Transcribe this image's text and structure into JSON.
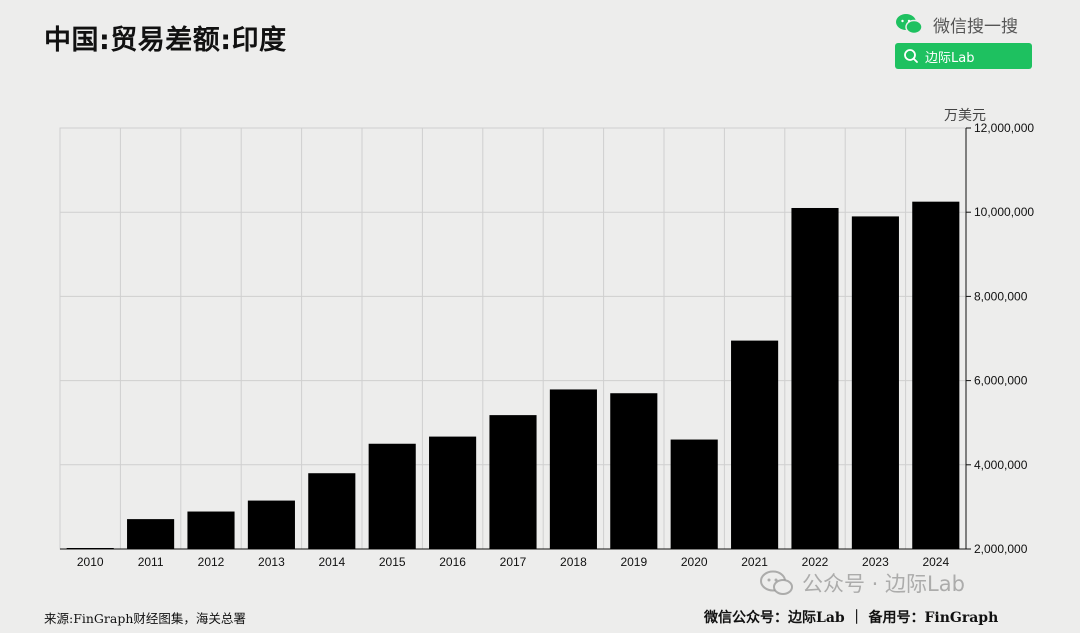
{
  "title": "中国:贸易差额:印度",
  "wechat": {
    "label": "微信搜一搜",
    "search_text": "边际Lab"
  },
  "watermark": "公众号 · 边际Lab",
  "source": "来源:FinGraph财经图集，海关总署",
  "credit": "微信公众号：边际Lab ｜ 备用号：FinGraph",
  "chart_data": {
    "type": "bar",
    "title": "中国:贸易差额:印度",
    "unit": "万美元",
    "categories": [
      "2010",
      "2011",
      "2012",
      "2013",
      "2014",
      "2015",
      "2016",
      "2017",
      "2018",
      "2019",
      "2020",
      "2021",
      "2022",
      "2023",
      "2024"
    ],
    "values": [
      2000000,
      2710000,
      2890000,
      3150000,
      3800000,
      4500000,
      4670000,
      5180000,
      5790000,
      5700000,
      4600000,
      6950000,
      10100000,
      9900000,
      10250000
    ],
    "ylim": [
      2000000,
      12000000
    ],
    "yticks": [
      2000000,
      4000000,
      6000000,
      8000000,
      10000000,
      12000000
    ],
    "ytick_labels": [
      "2,000,000",
      "4,000,000",
      "6,000,000",
      "8,000,000",
      "10,000,000",
      "12,000,000"
    ],
    "y_axis_side": "right",
    "grid": true,
    "bar_color": "#000000"
  }
}
